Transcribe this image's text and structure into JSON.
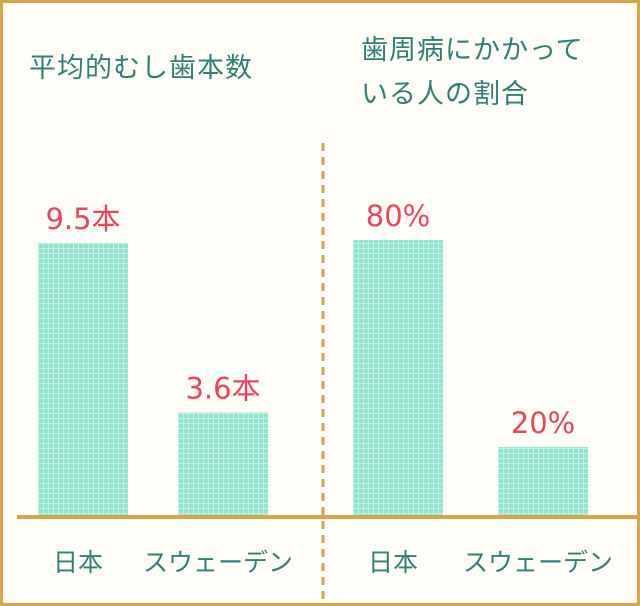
{
  "colors": {
    "frame": "#d7a54c",
    "bar": "#8fe3cf",
    "bar_grid": "#ffffff",
    "value_label": "#e8465a",
    "title": "#2f7f79",
    "axis_label": "#2f7f79"
  },
  "chart_data": [
    {
      "type": "bar",
      "title": "平均的むし歯本数",
      "categories": [
        "日本",
        "スウェーデン"
      ],
      "values": [
        9.5,
        3.6
      ],
      "data_labels": [
        "9.5本",
        "3.6本"
      ],
      "ylim": [
        0,
        12
      ],
      "grid": false,
      "legend": "none"
    },
    {
      "type": "bar",
      "title_lines": [
        "歯周病にかかって",
        "いる人の割合"
      ],
      "categories": [
        "日本",
        "スウェーデン"
      ],
      "values": [
        80,
        20
      ],
      "data_labels": [
        "80%",
        "20%"
      ],
      "ylim": [
        0,
        100
      ],
      "grid": false,
      "legend": "none"
    }
  ]
}
